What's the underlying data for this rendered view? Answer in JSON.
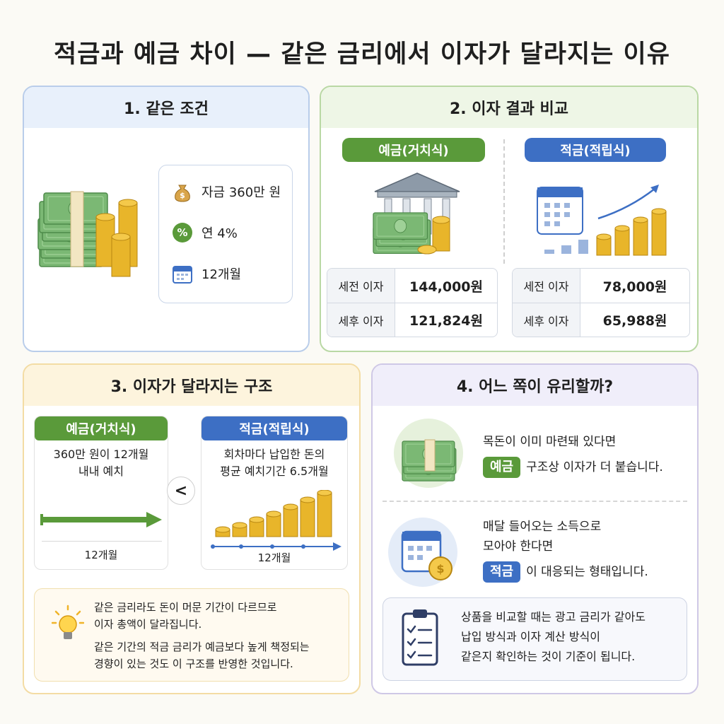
{
  "title": "적금과 예금 차이 — 같은 금리에서 이자가 달라지는 이유",
  "panel1": {
    "heading": "1. 같은 조건",
    "conditions": [
      {
        "icon": "money-bag-icon",
        "text": "자금 360만 원"
      },
      {
        "icon": "percent-icon",
        "text": "연 4%"
      },
      {
        "icon": "calendar-icon",
        "text": "12개월"
      }
    ]
  },
  "panel2": {
    "heading": "2. 이자 결과 비교",
    "deposit": {
      "label": "예금(거치식)",
      "rows": [
        {
          "label": "세전 이자",
          "value": "144,000원"
        },
        {
          "label": "세후 이자",
          "value": "121,824원"
        }
      ]
    },
    "savings": {
      "label": "적금(적립식)",
      "rows": [
        {
          "label": "세전 이자",
          "value": "78,000원"
        },
        {
          "label": "세후 이자",
          "value": "65,988원"
        }
      ]
    }
  },
  "panel3": {
    "heading": "3. 이자가 달라지는 구조",
    "deposit": {
      "label": "예금(거치식)",
      "desc_line1": "360만 원이 12개월",
      "desc_line2": "내내 예치",
      "period": "12개월"
    },
    "compare_symbol": "<",
    "savings": {
      "label": "적금(적립식)",
      "desc_line1": "회차마다 납입한 돈의",
      "desc_line2": "평균 예치기간 6.5개월",
      "period": "12개월"
    },
    "tip_line1": "같은 금리라도 돈이 머문 기간이 다르므로",
    "tip_line2": "이자 총액이 달라집니다.",
    "tip_line3": "같은 기간의 적금 금리가 예금보다 높게 책정되는",
    "tip_line4": "경향이 있는 것도 이 구조를 반영한 것입니다."
  },
  "panel4": {
    "heading": "4. 어느 쪽이 유리할까?",
    "case1_line1": "목돈이 이미 마련돼 있다면",
    "case1_tag": "예금",
    "case1_rest": "구조상 이자가 더 붙습니다.",
    "case2_line1": "매달 들어오는 소득으로",
    "case2_line2": "모아야 한다면",
    "case2_tag": "적금",
    "case2_rest": "이 대응되는 형태입니다.",
    "note_line1": "상품을 비교할 때는 광고 금리가 같아도",
    "note_line2": "납입 방식과 이자 계산 방식이",
    "note_line3": "같은지 확인하는 것이 기준이 됩니다."
  },
  "colors": {
    "green": "#5a9a3a",
    "blue": "#3d6fc4",
    "gold": "#e8b52a",
    "cash": "#6fae6a"
  }
}
